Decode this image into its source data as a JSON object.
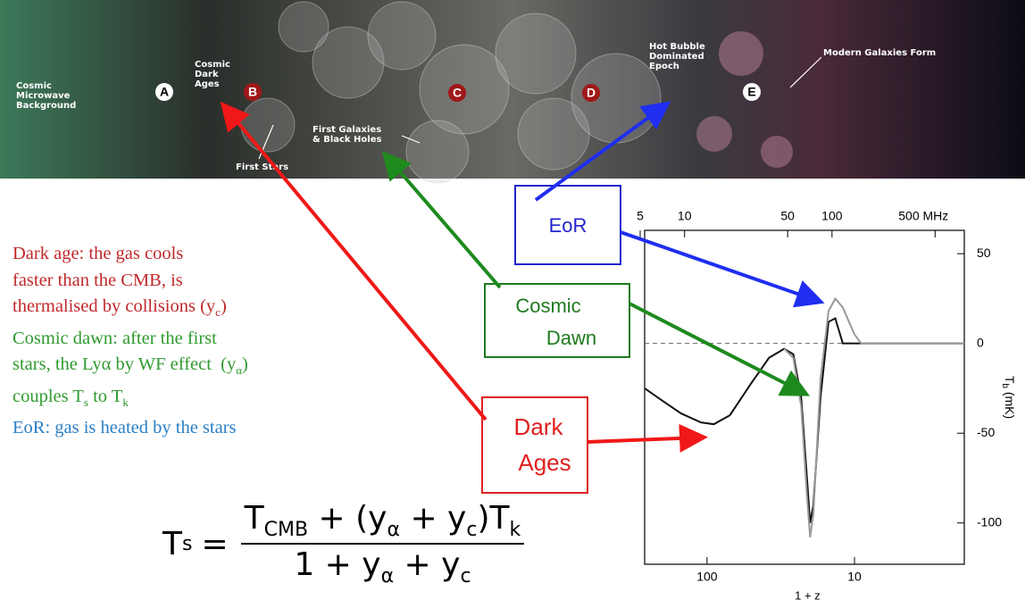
{
  "banner": {
    "cmb": [
      "Cosmic",
      "Microwave",
      "Background"
    ],
    "dark_ages": [
      "Cosmic",
      "Dark",
      "Ages"
    ],
    "markers": [
      "A",
      "B",
      "C",
      "D",
      "E"
    ],
    "first_stars": "First Stars",
    "first_galaxies": [
      "First Galaxies",
      "& Black Holes"
    ],
    "hot_bubble": [
      "Hot Bubble",
      "Dominated",
      "Epoch"
    ],
    "modern": "Modern Galaxies Form"
  },
  "callouts": {
    "eor": "EoR",
    "cosmic_dawn": [
      "Cosmic",
      "Dawn"
    ],
    "dark_ages": [
      "Dark",
      "Ages"
    ]
  },
  "notes": [
    [
      "Dark age: the gas cools"
    ],
    [
      "faster than the CMB, is"
    ],
    [
      "thermalised by collisions (y",
      "c",
      ")"
    ],
    [
      "Cosmic dawn: after the first"
    ],
    [
      "stars, the Lyα by WF effect  (y",
      "α",
      ")"
    ],
    [
      "couples T",
      "s",
      " to T",
      "k"
    ],
    [
      "EoR: gas is heated by the stars"
    ]
  ],
  "formula": {
    "lhs": [
      "T",
      "s",
      "="
    ],
    "numerator": [
      "T",
      "CMB",
      " + (y",
      "α",
      " + y",
      "c",
      ")T",
      "k"
    ],
    "denominator": [
      "1 + y",
      "α",
      " + y",
      "c"
    ]
  },
  "chart_data": {
    "type": "line",
    "xlabel": "1 + z",
    "ylabel": "T",
    "ylabel_sub": "b",
    "ylabel_unit": " (mK)",
    "log_x": true,
    "xlim": [
      265,
      1.8
    ],
    "xticks": [
      100,
      10
    ],
    "x2lim": [
      5.36,
      789
    ],
    "x2ticks": [
      5,
      10,
      50,
      100,
      {
        "value": 500,
        "label": "500 MHz"
      }
    ],
    "ylim": [
      -123,
      63
    ],
    "yticks": [
      50,
      0,
      -50,
      -100
    ],
    "hline": 0,
    "series": [
      {
        "color": "#111111",
        "x": [
          265,
          200,
          150,
          110,
          90,
          70,
          50,
          38,
          30,
          26,
          23,
          21,
          20,
          19,
          17,
          15,
          13.5,
          12,
          10,
          5,
          1.8
        ],
        "values": [
          -25,
          -32,
          -39,
          -44,
          -45,
          -40,
          -22,
          -8,
          -3,
          -6,
          -30,
          -75,
          -100,
          -90,
          -30,
          12,
          14,
          0,
          0,
          0,
          0
        ]
      },
      {
        "color": "#999999",
        "x": [
          30,
          26,
          23,
          21,
          20,
          19,
          17,
          15,
          13.5,
          12,
          10,
          9,
          5,
          1.8
        ],
        "values": [
          -3,
          -8,
          -35,
          -85,
          -108,
          -95,
          -20,
          18,
          25,
          20,
          5,
          0,
          0,
          0
        ]
      }
    ]
  }
}
